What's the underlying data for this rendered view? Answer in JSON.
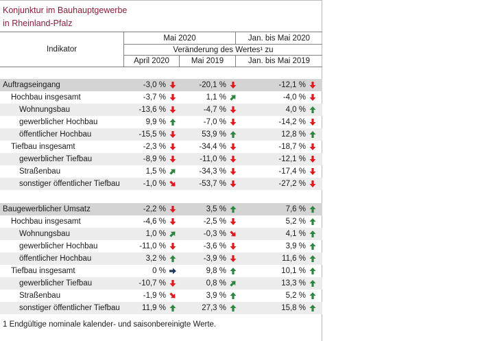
{
  "title": {
    "line1": "Konjunktur im Bauhauptgewerbe",
    "line2": "in Rheinland-Pfalz"
  },
  "header": {
    "indicator_label": "Indikator",
    "period_main": "Mai 2020",
    "period_cum": "Jan. bis Mai 2020",
    "change_label": "Veränderung des Wertes¹ zu",
    "col1": "April 2020",
    "col2": "Mai 2019",
    "col3": "Jan. bis Mai 2019"
  },
  "rows": [
    {
      "label": "Auftragseingang",
      "level": 0,
      "style": "section",
      "v1": "-3,0 %",
      "a1": "down",
      "v2": "-20,1 %",
      "a2": "down",
      "v3": "-12,1 %",
      "a3": "down"
    },
    {
      "label": "Hochbau insgesamt",
      "level": 1,
      "style": "",
      "v1": "-3,7 %",
      "a1": "down",
      "v2": "1,1 %",
      "a2": "up-right",
      "v3": "-4,0 %",
      "a3": "down"
    },
    {
      "label": "Wohnungsbau",
      "level": 2,
      "style": "alt",
      "v1": "-13,6 %",
      "a1": "down",
      "v2": "-4,7 %",
      "a2": "down",
      "v3": "4,0 %",
      "a3": "up"
    },
    {
      "label": "gewerblicher Hochbau",
      "level": 2,
      "style": "",
      "v1": "9,9 %",
      "a1": "up",
      "v2": "-7,0 %",
      "a2": "down",
      "v3": "-14,2 %",
      "a3": "down"
    },
    {
      "label": "öffentlicher Hochbau",
      "level": 2,
      "style": "alt",
      "v1": "-15,5 %",
      "a1": "down",
      "v2": "53,9 %",
      "a2": "up",
      "v3": "12,8 %",
      "a3": "up"
    },
    {
      "label": "Tiefbau insgesamt",
      "level": 1,
      "style": "",
      "v1": "-2,3 %",
      "a1": "down",
      "v2": "-34,4 %",
      "a2": "down",
      "v3": "-18,7 %",
      "a3": "down"
    },
    {
      "label": "gewerblicher Tiefbau",
      "level": 2,
      "style": "alt",
      "v1": "-8,9 %",
      "a1": "down",
      "v2": "-11,0 %",
      "a2": "down",
      "v3": "-12,1 %",
      "a3": "down"
    },
    {
      "label": "Straßenbau",
      "level": 2,
      "style": "",
      "v1": "1,5 %",
      "a1": "up-right",
      "v2": "-34,3 %",
      "a2": "down",
      "v3": "-17,4 %",
      "a3": "down"
    },
    {
      "label": "sonstiger öffentlicher Tiefbau",
      "level": 2,
      "style": "alt",
      "v1": "-1,0 %",
      "a1": "down-right",
      "v2": "-53,7 %",
      "a2": "down",
      "v3": "-27,2 %",
      "a3": "down"
    },
    {
      "label": "Baugewerblicher Umsatz",
      "level": 0,
      "style": "section",
      "v1": "-2,2 %",
      "a1": "down",
      "v2": "3,5 %",
      "a2": "up",
      "v3": "7,6 %",
      "a3": "up"
    },
    {
      "label": "Hochbau insgesamt",
      "level": 1,
      "style": "",
      "v1": "-4,6 %",
      "a1": "down",
      "v2": "-2,5 %",
      "a2": "down",
      "v3": "5,2 %",
      "a3": "up"
    },
    {
      "label": "Wohnungsbau",
      "level": 2,
      "style": "alt",
      "v1": "1,0 %",
      "a1": "up-right",
      "v2": "-0,3 %",
      "a2": "down-right",
      "v3": "4,1 %",
      "a3": "up"
    },
    {
      "label": "gewerblicher Hochbau",
      "level": 2,
      "style": "",
      "v1": "-11,0 %",
      "a1": "down",
      "v2": "-3,6 %",
      "a2": "down",
      "v3": "3,9 %",
      "a3": "up"
    },
    {
      "label": "öffentlicher Hochbau",
      "level": 2,
      "style": "alt",
      "v1": "3,2 %",
      "a1": "up",
      "v2": "-3,9 %",
      "a2": "down",
      "v3": "11,6 %",
      "a3": "up"
    },
    {
      "label": "Tiefbau insgesamt",
      "level": 1,
      "style": "",
      "v1": "0 %",
      "a1": "right",
      "v2": "9,8 %",
      "a2": "up",
      "v3": "10,1 %",
      "a3": "up"
    },
    {
      "label": "gewerblicher Tiefbau",
      "level": 2,
      "style": "alt",
      "v1": "-10,7 %",
      "a1": "down",
      "v2": "0,8 %",
      "a2": "up-right",
      "v3": "13,3 %",
      "a3": "up"
    },
    {
      "label": "Straßenbau",
      "level": 2,
      "style": "",
      "v1": "-1,9 %",
      "a1": "down-right",
      "v2": "3,9 %",
      "a2": "up",
      "v3": "5,2 %",
      "a3": "up"
    },
    {
      "label": "sonstiger öffentlicher Tiefbau",
      "level": 2,
      "style": "alt",
      "v1": "11,9 %",
      "a1": "up",
      "v2": "27,3 %",
      "a2": "up",
      "v3": "15,8 %",
      "a3": "up"
    }
  ],
  "footnote": "1 Endgültige nominale kalender- und saisonbereinigte Werte.",
  "colors": {
    "title": "#8c1c3a",
    "arrow_down": "#e0191f",
    "arrow_up": "#2e8540",
    "arrow_neutral": "#1f3a5f",
    "section_bg": "#d4d4d4",
    "alt_bg": "#ececec"
  }
}
